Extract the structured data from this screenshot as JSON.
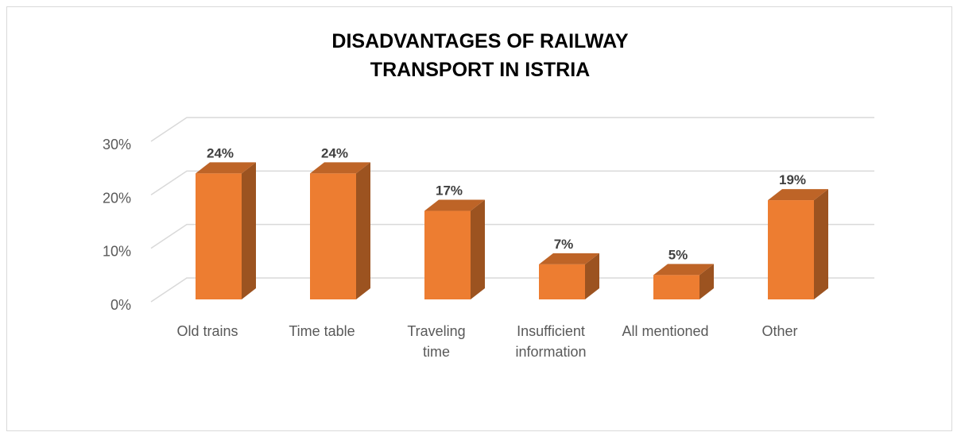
{
  "chart_data": {
    "type": "bar3d",
    "title": "DISADVANTAGES OF RAILWAY TRANSPORT IN ISTRIA",
    "categories": [
      "Old trains",
      "Time table",
      "Traveling time",
      "Insufficient information",
      "All mentioned",
      "Other"
    ],
    "values": [
      24,
      24,
      17,
      7,
      5,
      19
    ],
    "value_labels": [
      "24%",
      "24%",
      "17%",
      "7%",
      "5%",
      "19%"
    ],
    "color": "#ed7d31",
    "ylim": [
      0,
      30
    ],
    "yticks": [
      {
        "value": 0,
        "label": "0%"
      },
      {
        "value": 10,
        "label": "10%"
      },
      {
        "value": 20,
        "label": "20%"
      },
      {
        "value": 30,
        "label": "30%"
      }
    ],
    "grid": true
  }
}
